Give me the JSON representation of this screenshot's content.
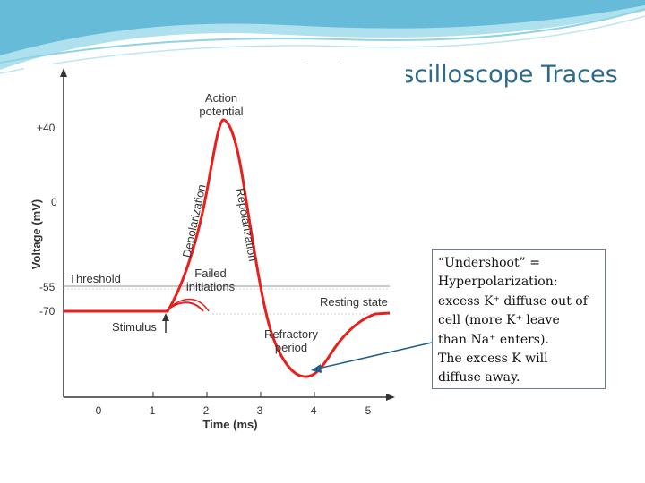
{
  "slide": {
    "title": "Analysing Oscilloscope Traces"
  },
  "figure": {
    "y_axis_label": "Voltage (mV)",
    "x_axis_label": "Time (ms)",
    "y_ticks": [
      "+40",
      "0",
      "-55",
      "-70"
    ],
    "x_ticks": [
      "0",
      "1",
      "2",
      "3",
      "4",
      "5"
    ],
    "labels": {
      "action_potential_1": "Action",
      "action_potential_2": "potential",
      "depolarization": "Depolarization",
      "repolarization": "Repolarization",
      "threshold": "Threshold",
      "failed_1": "Failed",
      "failed_2": "initiations",
      "resting_state": "Resting state",
      "stimulus": "Stimulus",
      "refractory_1": "Refractory",
      "refractory_2": "period"
    },
    "colors": {
      "trace": "#e8201c",
      "axis": "#333333",
      "threshold_line": "#b9b9b9"
    }
  },
  "callout": {
    "lines": [
      "“Undershoot” =",
      "Hyperpolarization:",
      "excess K⁺ diffuse out of",
      "cell (more K⁺ leave",
      "than Na⁺ enters).",
      "The excess K will",
      "diffuse away."
    ]
  }
}
